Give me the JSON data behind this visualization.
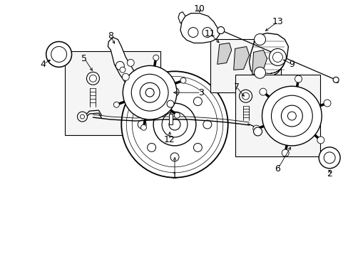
{
  "background_color": "#ffffff",
  "line_color": "#000000",
  "figsize": [
    4.89,
    3.6
  ],
  "dpi": 100,
  "label_color": "#000000"
}
